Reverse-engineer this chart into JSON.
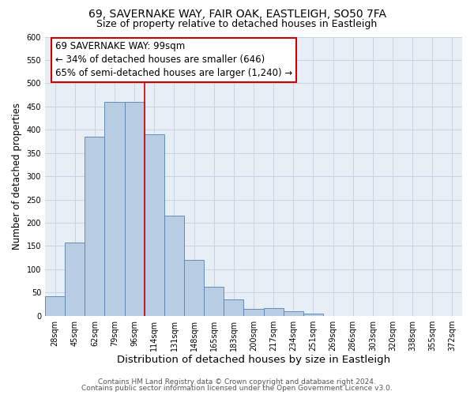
{
  "title": "69, SAVERNAKE WAY, FAIR OAK, EASTLEIGH, SO50 7FA",
  "subtitle": "Size of property relative to detached houses in Eastleigh",
  "xlabel": "Distribution of detached houses by size in Eastleigh",
  "ylabel": "Number of detached properties",
  "bar_labels": [
    "28sqm",
    "45sqm",
    "62sqm",
    "79sqm",
    "96sqm",
    "114sqm",
    "131sqm",
    "148sqm",
    "165sqm",
    "183sqm",
    "200sqm",
    "217sqm",
    "234sqm",
    "251sqm",
    "269sqm",
    "286sqm",
    "303sqm",
    "320sqm",
    "338sqm",
    "355sqm",
    "372sqm"
  ],
  "bar_values": [
    42,
    158,
    385,
    460,
    460,
    390,
    215,
    120,
    62,
    35,
    15,
    17,
    9,
    5,
    0,
    0,
    0,
    0,
    0,
    0,
    0
  ],
  "bar_color": "#b8cce4",
  "bar_edge_color": "#5580b0",
  "grid_color": "#c8d4e4",
  "background_color": "#e8eef6",
  "vline_color": "#cc0000",
  "annotation_title": "69 SAVERNAKE WAY: 99sqm",
  "annotation_line1": "← 34% of detached houses are smaller (646)",
  "annotation_line2": "65% of semi-detached houses are larger (1,240) →",
  "annotation_box_edge": "#cc0000",
  "ylim": [
    0,
    600
  ],
  "yticks": [
    0,
    50,
    100,
    150,
    200,
    250,
    300,
    350,
    400,
    450,
    500,
    550,
    600
  ],
  "footer1": "Contains HM Land Registry data © Crown copyright and database right 2024.",
  "footer2": "Contains public sector information licensed under the Open Government Licence v3.0.",
  "title_fontsize": 10,
  "subtitle_fontsize": 9,
  "xlabel_fontsize": 9.5,
  "ylabel_fontsize": 8.5,
  "tick_fontsize": 7,
  "annotation_fontsize": 8.5,
  "footer_fontsize": 6.5
}
